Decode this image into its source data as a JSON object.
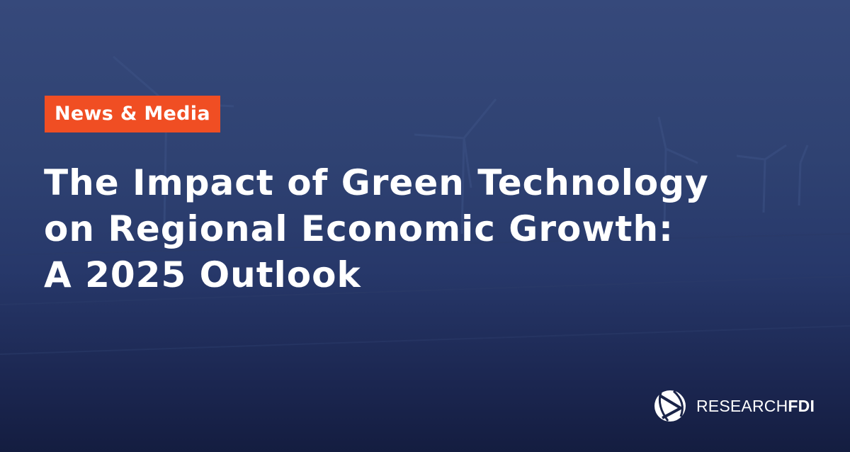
{
  "badge": {
    "label": "News & Media",
    "color": "#f04e23"
  },
  "title": {
    "lines": [
      "The Impact of Green Technology",
      "on Regional Economic Growth:",
      "A 2025 Outlook"
    ]
  },
  "logo": {
    "text_regular": "RESEARCH",
    "text_bold": "FDI",
    "icon": "researchfdi-globe-icon"
  },
  "background": {
    "color_top": "#36497b",
    "color_bottom": "#141d40",
    "image": "wind-turbines-solar-field"
  }
}
